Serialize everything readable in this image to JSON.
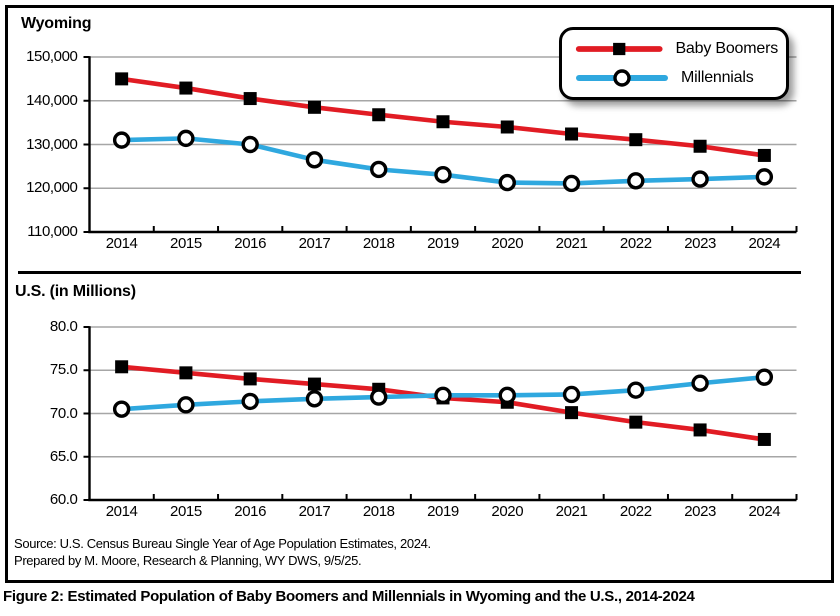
{
  "figure": {
    "caption": "Figure 2: Estimated Population of Baby Boomers and Millennials in Wyoming and the U.S., 2014-2024",
    "source_line1": "Source: U.S. Census Bureau Single Year of Age Population Estimates, 2024.",
    "source_line2": "Prepared by M. Moore, Research & Planning, WY DWS, 9/5/25."
  },
  "colors": {
    "baby_boomers": "#E11C24",
    "millennials": "#2FA8DF",
    "gridline": "#A6A6A6",
    "axis": "#000000",
    "background": "#FFFFFF"
  },
  "legend": {
    "items": [
      {
        "label": "Baby Boomers",
        "color": "#E11C24",
        "marker": "square"
      },
      {
        "label": "Millennials",
        "color": "#2FA8DF",
        "marker": "circle"
      }
    ]
  },
  "chart_data": [
    {
      "type": "line",
      "title": "Wyoming",
      "x": [
        "2014",
        "2015",
        "2016",
        "2017",
        "2018",
        "2019",
        "2020",
        "2021",
        "2022",
        "2023",
        "2024"
      ],
      "series": [
        {
          "name": "Baby Boomers",
          "color": "#E11C24",
          "marker": "square",
          "values": [
            145000,
            142900,
            140500,
            138500,
            136800,
            135200,
            134000,
            132400,
            131100,
            129600,
            127500
          ]
        },
        {
          "name": "Millennials",
          "color": "#2FA8DF",
          "marker": "circle",
          "values": [
            131000,
            131400,
            130000,
            126500,
            124300,
            123100,
            121300,
            121100,
            121700,
            122100,
            122600
          ]
        }
      ],
      "ylim": [
        110000,
        150000
      ],
      "ytick_labels": [
        "150,000",
        "140,000",
        "130,000",
        "120,000",
        "110,000"
      ],
      "grid": "horizontal",
      "legend_position": "top-right"
    },
    {
      "type": "line",
      "title": "U.S. (in Millions)",
      "x": [
        "2014",
        "2015",
        "2016",
        "2017",
        "2018",
        "2019",
        "2020",
        "2021",
        "2022",
        "2023",
        "2024"
      ],
      "series": [
        {
          "name": "Baby Boomers",
          "color": "#E11C24",
          "marker": "square",
          "values": [
            75.4,
            74.7,
            74.0,
            73.4,
            72.8,
            71.8,
            71.3,
            70.1,
            69.0,
            68.1,
            67.0
          ]
        },
        {
          "name": "Millennials",
          "color": "#2FA8DF",
          "marker": "circle",
          "values": [
            70.5,
            71.0,
            71.4,
            71.7,
            71.9,
            72.1,
            72.1,
            72.2,
            72.7,
            73.5,
            74.2
          ]
        }
      ],
      "ylim": [
        60.0,
        80.0
      ],
      "ytick_labels": [
        "80.0",
        "75.0",
        "70.0",
        "65.0",
        "60.0"
      ],
      "grid": "horizontal",
      "legend_position": "none"
    }
  ]
}
